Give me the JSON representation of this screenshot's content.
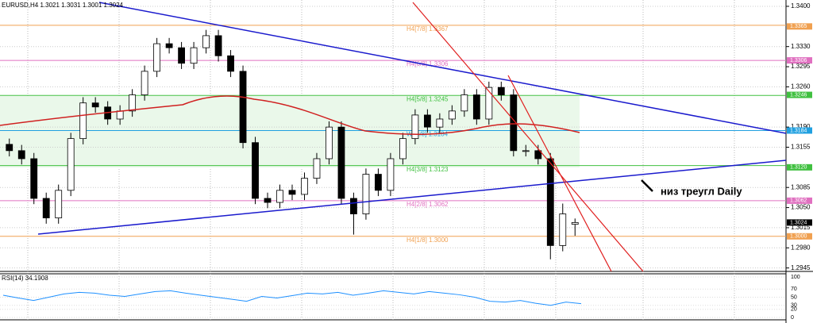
{
  "chart_data": {
    "type": "candlestick",
    "title": "EURUSD,H4 1.3021 1.3031 1.3001 1.3024",
    "open": [
      1.316,
      1.3149,
      1.3135,
      1.3066,
      1.3032,
      1.308,
      1.317,
      1.3232,
      1.3225,
      1.3204,
      1.3218,
      1.3246,
      1.3287,
      1.3335,
      1.3328,
      1.3301,
      1.3328,
      1.3349,
      1.3314,
      1.3287,
      1.3163,
      1.3066,
      1.3059,
      1.308,
      1.3073,
      1.3101,
      1.3135,
      1.319,
      1.3066,
      1.3039,
      1.3108,
      1.308,
      1.3135,
      1.317,
      1.3211,
      1.319,
      1.3204,
      1.3218,
      1.3246,
      1.3204,
      1.3259,
      1.3246,
      1.3149,
      1.3149,
      1.3135,
      1.2984,
      1.3021
    ],
    "high": [
      1.317,
      1.3159,
      1.3145,
      1.3076,
      1.309,
      1.318,
      1.3242,
      1.3242,
      1.3235,
      1.3228,
      1.3256,
      1.3297,
      1.3345,
      1.3345,
      1.3338,
      1.3338,
      1.3359,
      1.3359,
      1.3324,
      1.3297,
      1.3173,
      1.3076,
      1.309,
      1.309,
      1.3111,
      1.3145,
      1.32,
      1.32,
      1.3076,
      1.3118,
      1.3118,
      1.3145,
      1.318,
      1.3221,
      1.3221,
      1.3214,
      1.3228,
      1.3256,
      1.3256,
      1.3269,
      1.3269,
      1.3256,
      1.3159,
      1.3159,
      1.3145,
      1.3057,
      1.3031
    ],
    "low": [
      1.3139,
      1.3125,
      1.3056,
      1.3022,
      1.3022,
      1.307,
      1.316,
      1.3215,
      1.3194,
      1.3194,
      1.3208,
      1.3236,
      1.3277,
      1.3318,
      1.3291,
      1.3291,
      1.3318,
      1.3304,
      1.3277,
      1.3153,
      1.3056,
      1.3049,
      1.3049,
      1.3063,
      1.3063,
      1.3091,
      1.3125,
      1.3056,
      1.3003,
      1.3029,
      1.307,
      1.307,
      1.3125,
      1.316,
      1.318,
      1.318,
      1.3194,
      1.3208,
      1.3194,
      1.3194,
      1.3236,
      1.3139,
      1.3139,
      1.3125,
      1.296,
      1.2974,
      1.3001
    ],
    "close": [
      1.3149,
      1.3135,
      1.3066,
      1.3032,
      1.308,
      1.317,
      1.3232,
      1.3225,
      1.3204,
      1.3218,
      1.3246,
      1.3287,
      1.3335,
      1.3328,
      1.3301,
      1.3328,
      1.3349,
      1.3314,
      1.3287,
      1.3163,
      1.3066,
      1.3059,
      1.308,
      1.3073,
      1.3101,
      1.3135,
      1.319,
      1.3066,
      1.3039,
      1.3108,
      1.308,
      1.3135,
      1.317,
      1.3211,
      1.319,
      1.3204,
      1.3218,
      1.3246,
      1.3204,
      1.3259,
      1.3246,
      1.3149,
      1.3149,
      1.3135,
      1.2984,
      1.3039,
      1.3024
    ],
    "ylim": [
      1.2939,
      1.3411
    ],
    "yticks": [
      {
        "value": 1.34,
        "label": "1.3400"
      },
      {
        "value": 1.333,
        "label": "1.3330"
      },
      {
        "value": 1.3295,
        "label": "1.3295"
      },
      {
        "value": 1.326,
        "label": "1.3260"
      },
      {
        "value": 1.319,
        "label": "1.3190"
      },
      {
        "value": 1.3155,
        "label": "1.3155"
      },
      {
        "value": 1.3085,
        "label": "1.3085"
      },
      {
        "value": 1.305,
        "label": "1.3050"
      },
      {
        "value": 1.3015,
        "label": "1.3015"
      },
      {
        "value": 1.298,
        "label": "1.2980"
      },
      {
        "value": 1.2945,
        "label": "1.2945"
      }
    ],
    "grid": true,
    "levels": [
      {
        "label": "H4[7/8] 1.3367",
        "value": 1.3367,
        "color": "#f0a050"
      },
      {
        "label": "H4[6/8] 1.3306",
        "value": 1.3306,
        "color": "#e070c0"
      },
      {
        "label": "H4[5/8] 1.3245",
        "value": 1.3245,
        "color": "#40c040"
      },
      {
        "label": "W [4/8] 1.3184",
        "value": 1.3184,
        "color": "#20a0e0"
      },
      {
        "label": "H4[3/8] 1.3123",
        "value": 1.3123,
        "color": "#40c040"
      },
      {
        "label": "H4[2/8] 1.3062",
        "value": 1.3062,
        "color": "#e070c0"
      },
      {
        "label": "H4[1/8] 1.3000",
        "value": 1.3,
        "color": "#f0a050"
      }
    ],
    "price_tags": [
      {
        "value": 1.3365,
        "label": "1.3365",
        "color": "#f0a050"
      },
      {
        "value": 1.3306,
        "label": "1.3306",
        "color": "#e070c0"
      },
      {
        "value": 1.3246,
        "label": "1.3246",
        "color": "#40c040"
      },
      {
        "value": 1.3184,
        "label": "1.3184",
        "color": "#20a0e0"
      },
      {
        "value": 1.312,
        "label": "1.3120",
        "color": "#40c040"
      },
      {
        "value": 1.3062,
        "label": "1.3062",
        "color": "#e070c0"
      },
      {
        "value": 1.3024,
        "label": "1.3024",
        "color": "#000000"
      },
      {
        "value": 1.3,
        "label": "1.3000",
        "color": "#f0a050"
      }
    ],
    "annotation": "низ треугл Daily",
    "rsi": {
      "title": "RSI(14) 34.1908",
      "color": "#1e90ff",
      "values": [
        55,
        48,
        42,
        50,
        58,
        62,
        60,
        55,
        52,
        58,
        64,
        66,
        60,
        55,
        50,
        45,
        40,
        52,
        48,
        54,
        60,
        58,
        62,
        55,
        60,
        66,
        62,
        58,
        64,
        60,
        56,
        50,
        40,
        38,
        42,
        35,
        30,
        38,
        34
      ],
      "ylim": [
        0,
        100
      ],
      "yticks": [
        100,
        70,
        50,
        30,
        20,
        0
      ]
    }
  }
}
